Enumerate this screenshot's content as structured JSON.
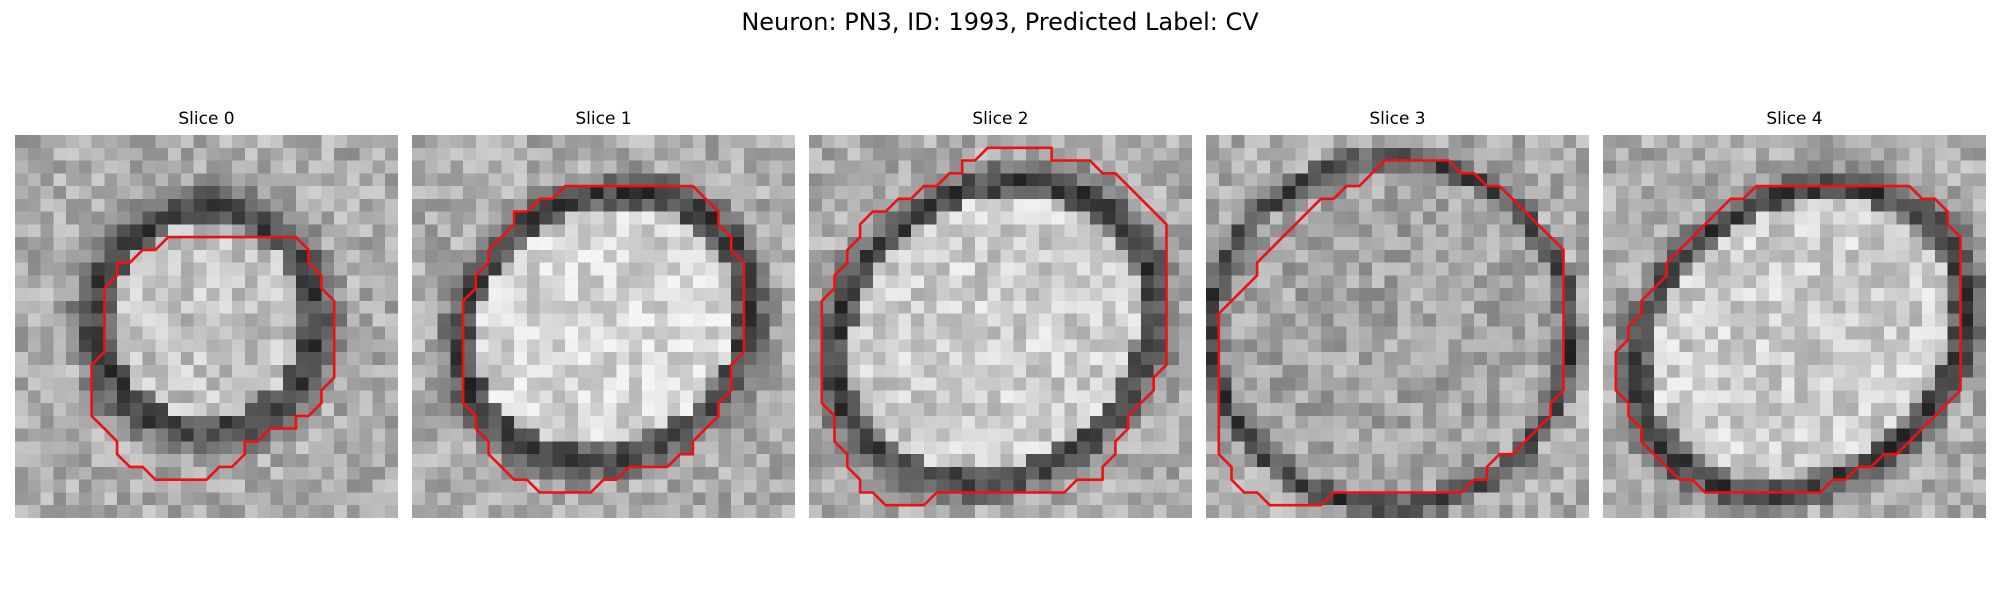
{
  "figure": {
    "title": "Neuron: PN3, ID: 1993, Predicted Label: CV",
    "outline_color": "#ee1111",
    "panels": [
      {
        "label": "Slice 0"
      },
      {
        "label": "Slice 1"
      },
      {
        "label": "Slice 2"
      },
      {
        "label": "Slice 3"
      },
      {
        "label": "Slice 4"
      }
    ]
  }
}
